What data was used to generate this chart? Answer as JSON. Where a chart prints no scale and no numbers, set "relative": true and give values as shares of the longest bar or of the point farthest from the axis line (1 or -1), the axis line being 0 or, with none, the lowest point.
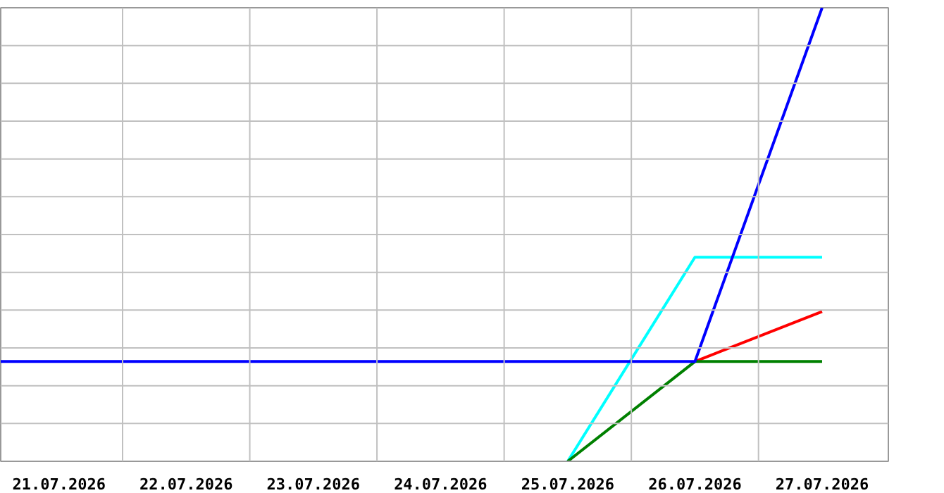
{
  "chart_data": {
    "type": "line",
    "relative": true,
    "grid": true,
    "xlim": [
      "2026-07-20T13:00",
      "2026-07-27T12:30"
    ],
    "xticks": [
      {
        "value": "2026-07-21",
        "label": "21.07.2026"
      },
      {
        "value": "2026-07-22",
        "label": "22.07.2026"
      },
      {
        "value": "2026-07-23",
        "label": "23.07.2026"
      },
      {
        "value": "2026-07-24",
        "label": "24.07.2026"
      },
      {
        "value": "2026-07-25",
        "label": "25.07.2026"
      },
      {
        "value": "2026-07-26",
        "label": "26.07.2026"
      },
      {
        "value": "2026-07-27",
        "label": "27.07.2026"
      },
      {
        "value": "2026-07-21T12:00",
        "label": null
      },
      {
        "value": "2026-07-22T12:00",
        "label": null
      },
      {
        "value": "2026-07-23T12:00",
        "label": null
      },
      {
        "value": "2026-07-24T12:00",
        "label": null
      },
      {
        "value": "2026-07-25T12:00",
        "label": null
      },
      {
        "value": "2026-07-26T12:00",
        "label": null
      }
    ],
    "series": [
      {
        "color": "#00ffff",
        "x": [
          "2026-07-25",
          "2026-07-26",
          "2026-07-27"
        ],
        "values": [
          0,
          0.45,
          0.45
        ]
      },
      {
        "color": "#ff0000",
        "x": [
          "2026-07-26",
          "2026-07-27"
        ],
        "values": [
          0.22,
          0.33
        ]
      },
      {
        "color": "#008000",
        "x": [
          "2026-07-25",
          "2026-07-26",
          "2026-07-27"
        ],
        "values": [
          0,
          0.22,
          0.22
        ]
      },
      {
        "color": "#0000ff",
        "x": [
          "2026-07-20T13:00",
          "2026-07-21",
          "2026-07-22",
          "2026-07-23",
          "2026-07-24",
          "2026-07-25",
          "2026-07-26",
          "2026-07-27"
        ],
        "values": [
          0.22,
          0.22,
          0.22,
          0.22,
          0.22,
          0.22,
          0.22,
          1
        ]
      }
    ]
  }
}
